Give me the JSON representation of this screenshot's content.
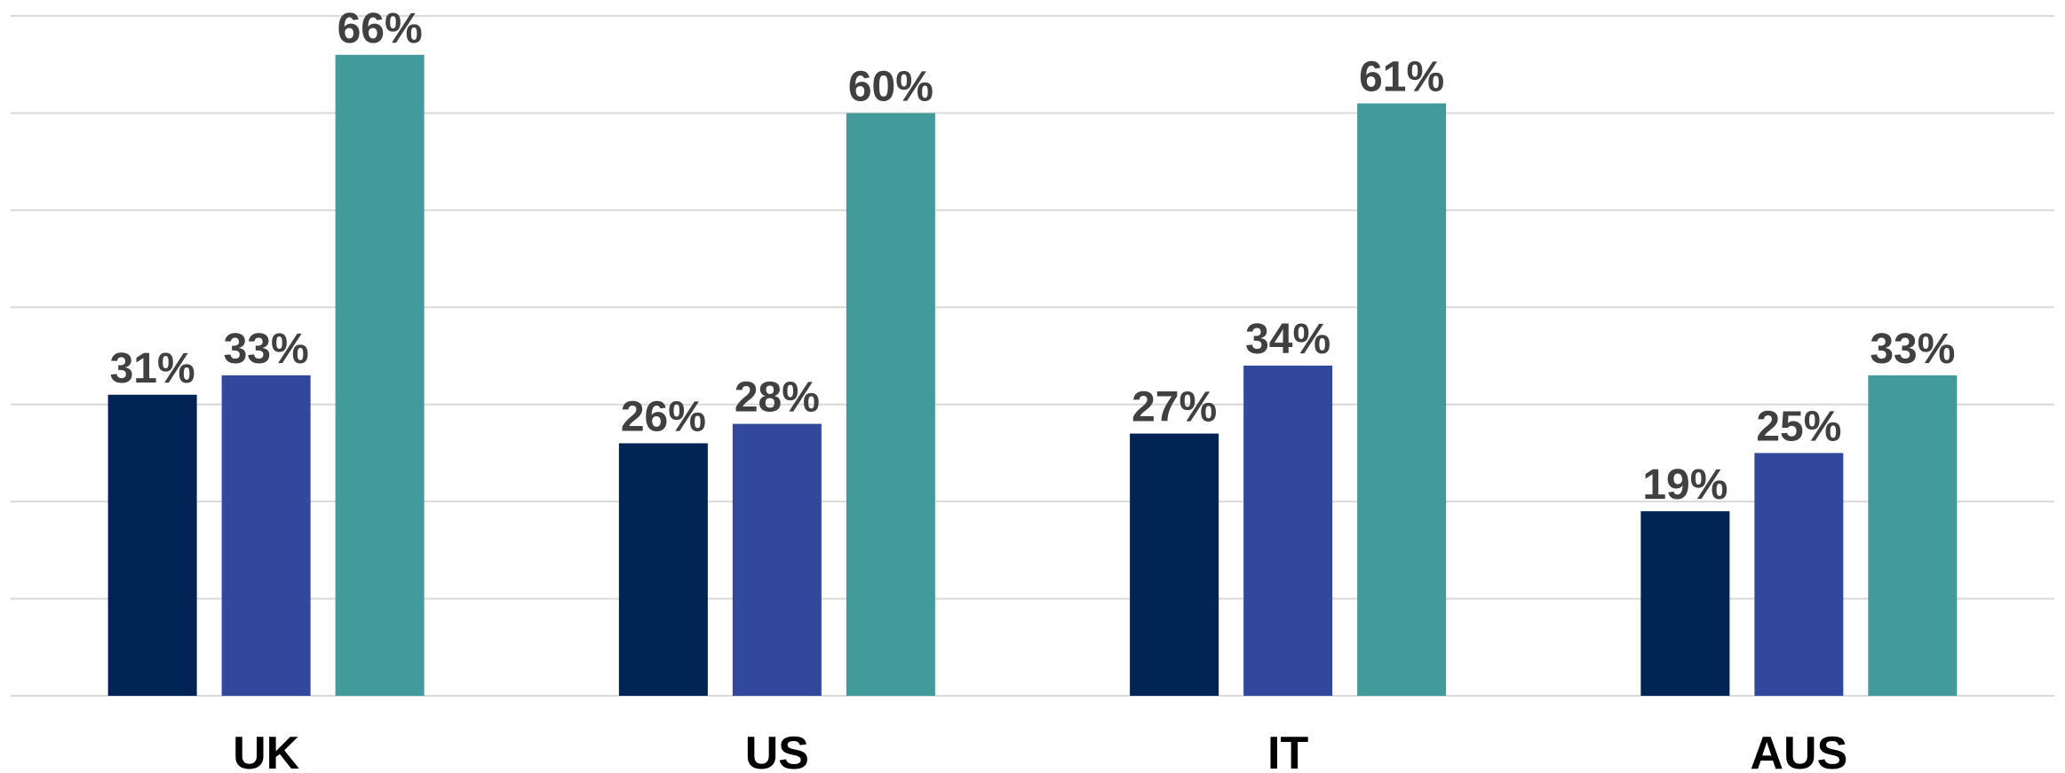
{
  "chart_data": {
    "type": "bar",
    "categories": [
      "UK",
      "US",
      "IT",
      "AUS"
    ],
    "series": [
      {
        "values": [
          31,
          26,
          27,
          19
        ],
        "color": "#002454"
      },
      {
        "values": [
          33,
          28,
          34,
          25
        ],
        "color": "#31489c"
      },
      {
        "values": [
          66,
          60,
          61,
          33
        ],
        "color": "#439a9b"
      }
    ],
    "value_suffix": "%",
    "ylim": [
      0,
      70
    ],
    "grid": true,
    "legend": "none"
  }
}
